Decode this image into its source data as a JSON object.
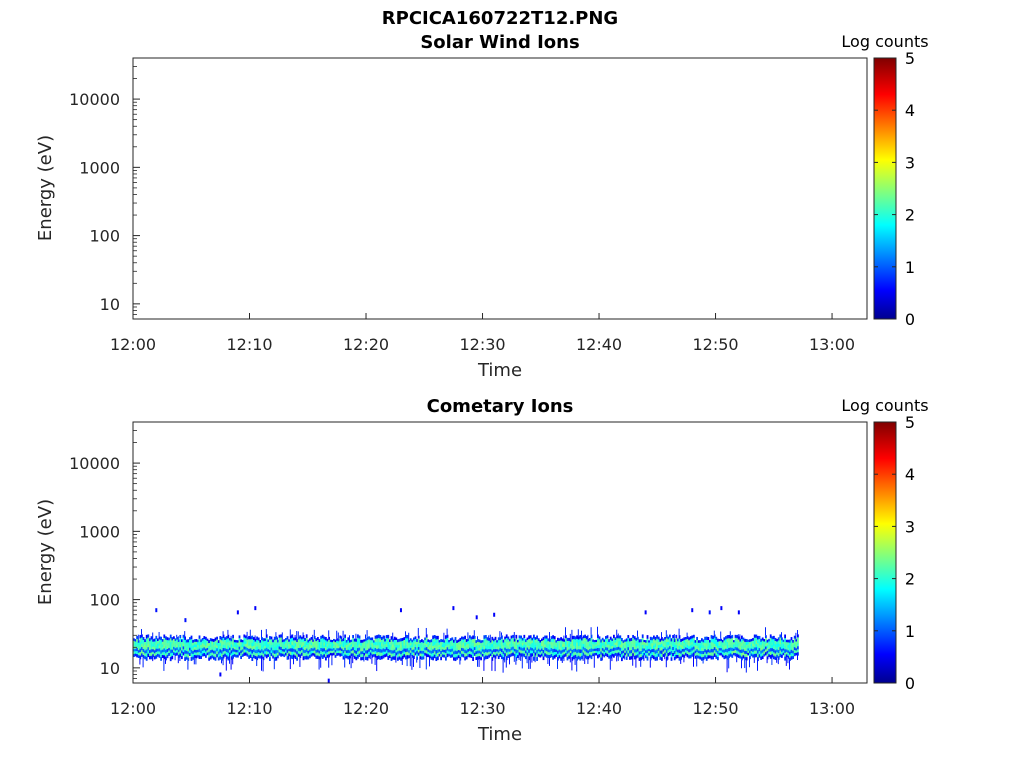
{
  "figure_title": "RPCICA160722T12.PNG",
  "chart_data": [
    {
      "type": "heatmap",
      "title": "Solar Wind Ions",
      "xlabel": "Time",
      "ylabel": "Energy (eV)",
      "yscale": "log",
      "xlim": [
        "12:00",
        "13:03"
      ],
      "ylim": [
        6,
        40000
      ],
      "x_ticks": [
        "12:00",
        "12:10",
        "12:20",
        "12:30",
        "12:40",
        "12:50",
        "13:00"
      ],
      "y_ticks": [
        "10",
        "100",
        "1000",
        "10000"
      ],
      "colorbar": {
        "label": "Log counts",
        "range": [
          0,
          5
        ],
        "ticks": [
          "0",
          "1",
          "2",
          "3",
          "4",
          "5"
        ],
        "colormap": "jet"
      },
      "cells": []
    },
    {
      "type": "heatmap",
      "title": "Cometary Ions",
      "xlabel": "Time",
      "ylabel": "Energy (eV)",
      "yscale": "log",
      "xlim": [
        "12:00",
        "13:03"
      ],
      "ylim": [
        6,
        40000
      ],
      "x_ticks": [
        "12:00",
        "12:10",
        "12:20",
        "12:30",
        "12:40",
        "12:50",
        "13:00"
      ],
      "y_ticks": [
        "10",
        "100",
        "1000",
        "10000"
      ],
      "colorbar": {
        "label": "Log counts",
        "range": [
          0,
          5
        ],
        "ticks": [
          "0",
          "1",
          "2",
          "3",
          "4",
          "5"
        ],
        "colormap": "jet"
      },
      "band": {
        "time_start": "12:00",
        "time_end": "12:57",
        "energy_low": 14,
        "energy_high": 28,
        "core_energy_low": 16,
        "core_energy_high": 25,
        "peak_log_counts": 2.2,
        "edge_log_counts": 0.8
      },
      "sparse_points": [
        {
          "time": "12:02",
          "energy": 70,
          "log_counts": 0.7
        },
        {
          "time": "12:04.5",
          "energy": 50,
          "log_counts": 0.7
        },
        {
          "time": "12:09",
          "energy": 65,
          "log_counts": 0.6
        },
        {
          "time": "12:10.5",
          "energy": 75,
          "log_counts": 0.6
        },
        {
          "time": "12:23",
          "energy": 70,
          "log_counts": 0.6
        },
        {
          "time": "12:27.5",
          "energy": 75,
          "log_counts": 0.6
        },
        {
          "time": "12:29.5",
          "energy": 55,
          "log_counts": 0.6
        },
        {
          "time": "12:31",
          "energy": 60,
          "log_counts": 0.6
        },
        {
          "time": "12:44",
          "energy": 65,
          "log_counts": 0.6
        },
        {
          "time": "12:48",
          "energy": 70,
          "log_counts": 0.6
        },
        {
          "time": "12:49.5",
          "energy": 65,
          "log_counts": 0.7
        },
        {
          "time": "12:50.5",
          "energy": 75,
          "log_counts": 0.6
        },
        {
          "time": "12:52",
          "energy": 65,
          "log_counts": 0.6
        },
        {
          "time": "12:16.8",
          "energy": 6.5,
          "log_counts": 0.6
        },
        {
          "time": "12:07.5",
          "energy": 8,
          "log_counts": 0.6
        }
      ]
    }
  ]
}
